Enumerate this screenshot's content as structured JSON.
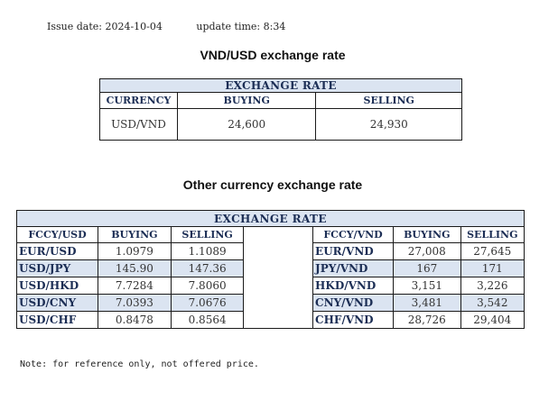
{
  "header": {
    "issue_date": "Issue date:  2024-10-04",
    "update_time": "update time:  8:34"
  },
  "table1": {
    "title": "VND/USD exchange rate",
    "header": "EXCHANGE RATE",
    "columns": [
      "CURRENCY",
      "BUYING",
      "SELLING"
    ],
    "row": {
      "pair": "USD/VND",
      "buying": "24,600",
      "selling": "24,930"
    }
  },
  "table2": {
    "title": "Other currency exchange rate",
    "header": "EXCHANGE  RATE",
    "left_columns": [
      "FCCY/USD",
      "BUYING",
      "SELLING"
    ],
    "right_columns": [
      "FCCY/VND",
      "BUYING",
      "SELLING"
    ],
    "rows": [
      {
        "left_pair": "EUR/USD",
        "left_buy": "1.0979",
        "left_sell": "1.1089",
        "right_pair": "EUR/VND",
        "right_buy": "27,008",
        "right_sell": "27,645"
      },
      {
        "left_pair": "USD/JPY",
        "left_buy": "145.90",
        "left_sell": "147.36",
        "right_pair": "JPY/VND",
        "right_buy": "167",
        "right_sell": "171"
      },
      {
        "left_pair": "USD/HKD",
        "left_buy": "7.7284",
        "left_sell": "7.8060",
        "right_pair": "HKD/VND",
        "right_buy": "3,151",
        "right_sell": "3,226"
      },
      {
        "left_pair": "USD/CNY",
        "left_buy": "7.0393",
        "left_sell": "7.0676",
        "right_pair": "CNY/VND",
        "right_buy": "3,481",
        "right_sell": "3,542"
      },
      {
        "left_pair": "USD/CHF",
        "left_buy": "0.8478",
        "left_sell": "0.8564",
        "right_pair": "CHF/VND",
        "right_buy": "28,726",
        "right_sell": "29,404"
      }
    ]
  },
  "note": "Note: for reference only, not offered price.",
  "colors": {
    "header_fill": "#dbe4f1",
    "header_text": "#1c2e55",
    "border": "#1a1a1a"
  }
}
